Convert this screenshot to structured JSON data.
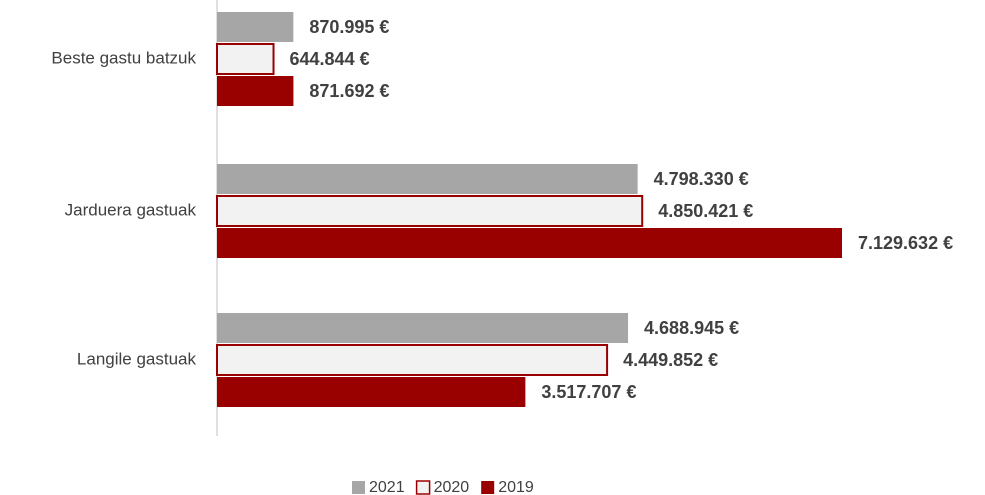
{
  "chart_data": {
    "type": "bar",
    "orientation": "horizontal",
    "categories": [
      "Beste gastu batzuk",
      "Jarduera gastuak",
      "Langile gastuak"
    ],
    "series": [
      {
        "name": "2021",
        "color": "#a6a6a6",
        "values": [
          870995,
          4798330,
          4688945
        ],
        "value_labels": [
          "870.995 €",
          "4.798.330 €",
          "4.688.945 €"
        ]
      },
      {
        "name": "2020",
        "color": "#f2f2f2",
        "edge_color": "#9b0000",
        "values": [
          644844,
          4850421,
          4449852
        ],
        "value_labels": [
          "644.844 €",
          "4.850.421 €",
          "4.449.852 €"
        ]
      },
      {
        "name": "2019",
        "color": "#990000",
        "values": [
          871692,
          7129632,
          3517707
        ],
        "value_labels": [
          "871.692 €",
          "7.129.632 €",
          "3.517.707 €"
        ]
      }
    ],
    "legend": "bottom"
  }
}
